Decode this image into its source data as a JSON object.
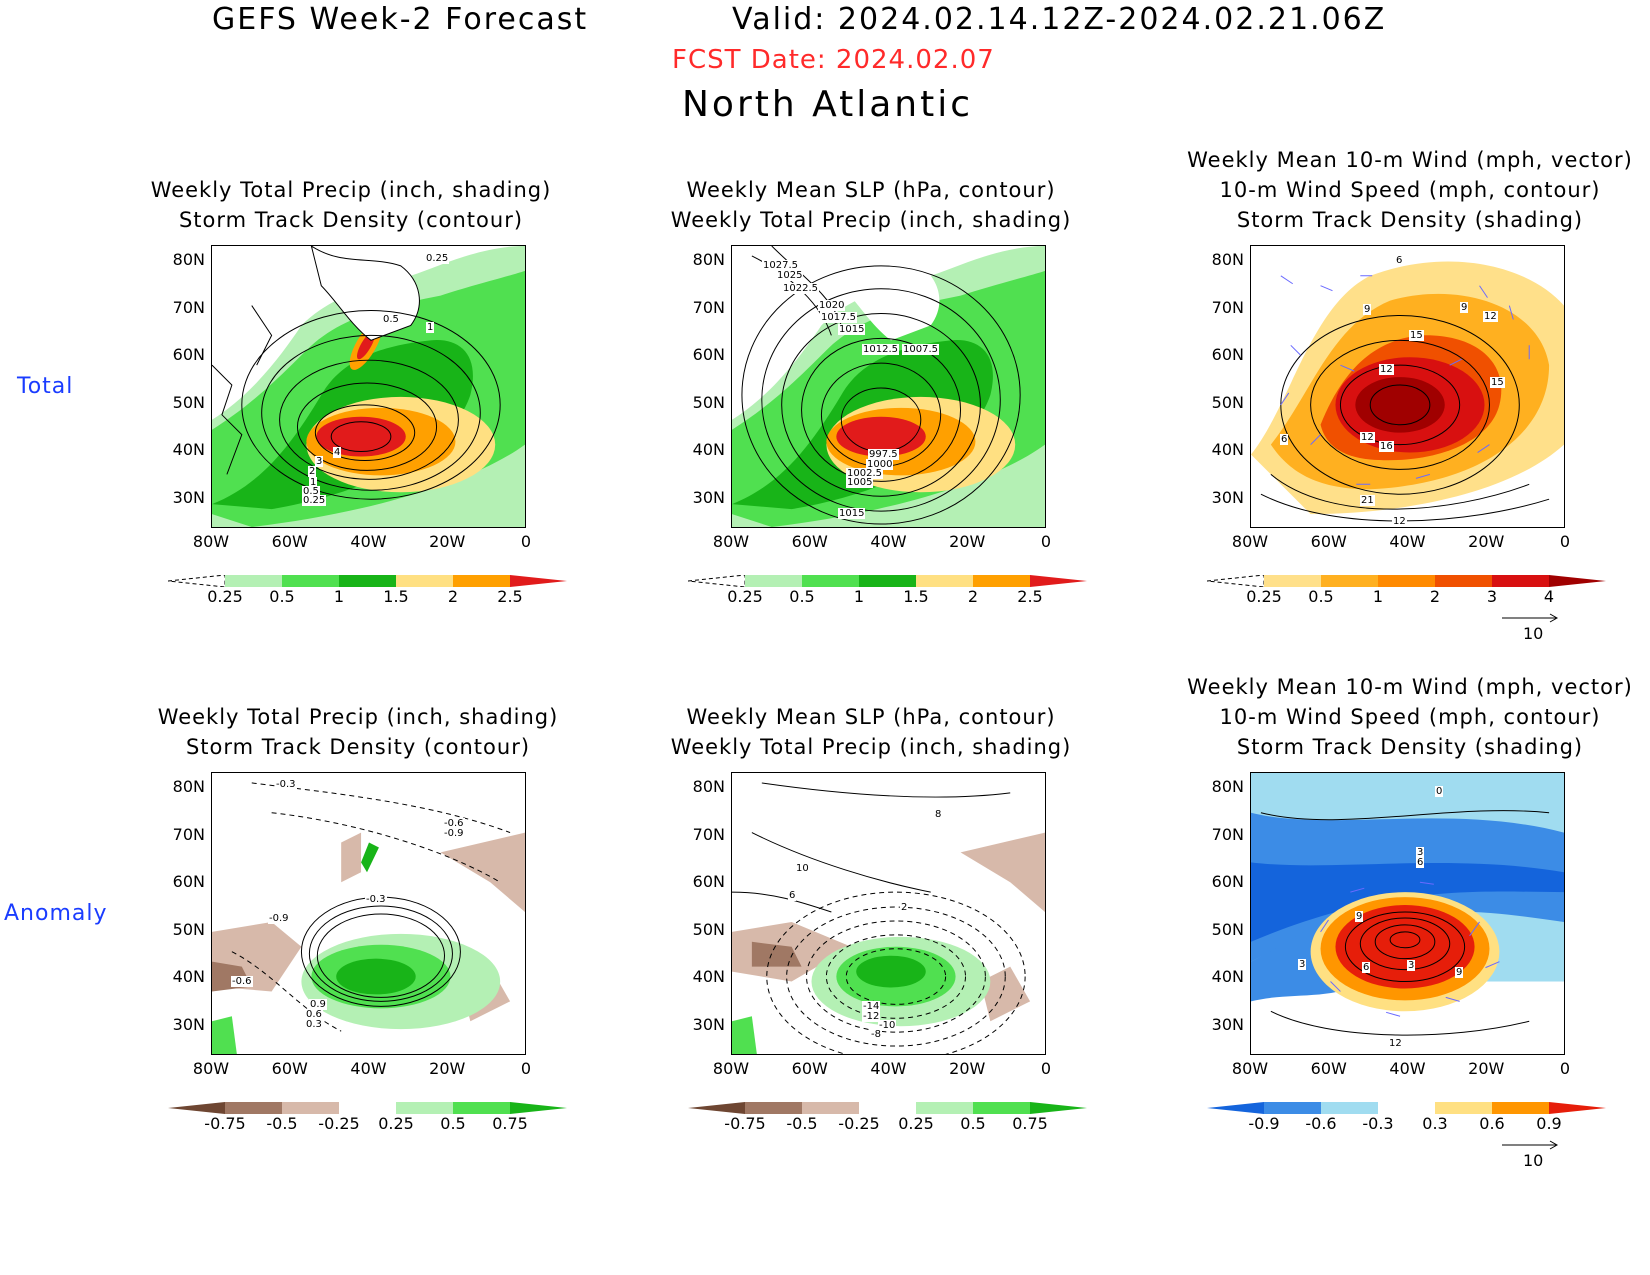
{
  "header": {
    "title": "GEFS Week-2 Forecast",
    "valid": "Valid: 2024.02.14.12Z-2024.02.21.06Z",
    "fcst_date": "FCST Date: 2024.02.07",
    "region": "North Atlantic"
  },
  "rows": {
    "total": "Total",
    "anomaly": "Anomaly"
  },
  "titles": {
    "precip": [
      "Weekly Total Precip (inch, shading)",
      "Storm Track Density (contour)"
    ],
    "slp": [
      "Weekly Mean SLP (hPa, contour)",
      "Weekly Total Precip (inch, shading)"
    ],
    "wind": [
      "Weekly Mean 10-m Wind (mph, vector)",
      "10-m Wind Speed (mph, contour)",
      "Storm Track Density (shading)"
    ]
  },
  "axes": {
    "lat": [
      "80N",
      "70N",
      "60N",
      "50N",
      "40N",
      "30N"
    ],
    "lon": [
      "80W",
      "60W",
      "40W",
      "20W",
      "0"
    ]
  },
  "colorbars": {
    "precip_total": [
      "0.25",
      "0.5",
      "1",
      "1.5",
      "2",
      "2.5"
    ],
    "std_total": [
      "0.25",
      "0.5",
      "1",
      "2",
      "3",
      "4"
    ],
    "precip_anom": [
      "-0.75",
      "-0.5",
      "-0.25",
      "0.25",
      "0.5",
      "0.75"
    ],
    "std_anom": [
      "-0.9",
      "-0.6",
      "-0.3",
      "0.3",
      "0.6",
      "0.9"
    ]
  },
  "vector_ref": "10",
  "contour_labels": {
    "p1": [
      "0.25",
      "0.5",
      "1",
      "4",
      "3",
      "2",
      "1",
      "0.5",
      "0.25"
    ],
    "p2": [
      "1027.5",
      "1025",
      "1022.5",
      "1020",
      "1017.5",
      "1015",
      "1012.5",
      "1007.5",
      "997.5",
      "1000",
      "1002.5",
      "1005",
      "1015"
    ],
    "p3": [
      "6",
      "9",
      "9",
      "12",
      "15",
      "12",
      "15",
      "12",
      "16",
      "6",
      "21",
      "12"
    ],
    "p4": [
      "-0.3",
      "-0.6",
      "-0.9",
      "-0.3",
      "-0.9",
      "-0.6",
      "0.9",
      "0.6",
      "0.3"
    ],
    "p5": [
      "8",
      "10",
      "6",
      "2",
      "-14",
      "-12",
      "-10",
      "-8"
    ],
    "p6": [
      "0",
      "3",
      "6",
      "9",
      "3",
      "6",
      "3",
      "9",
      "12"
    ]
  },
  "colors": {
    "title_red": "#ff2a2a",
    "row_blue": "#1a3cff",
    "precip_scale": [
      "#b4f0b4",
      "#50e050",
      "#18b418",
      "#ffe082",
      "#ffa000",
      "#e11b1b"
    ],
    "std_scale": [
      "#ffe08a",
      "#ffb020",
      "#ff8a00",
      "#f05000",
      "#d81010",
      "#a00000"
    ],
    "brown_green": [
      "#6e4632",
      "#a07864",
      "#d7b9aa",
      "#b4f0b4",
      "#50e050",
      "#18b418"
    ],
    "blue_red": [
      "#1464dc",
      "#3c8ce6",
      "#a0dcf0",
      "#ffe082",
      "#ff9600",
      "#e61e0a"
    ]
  }
}
